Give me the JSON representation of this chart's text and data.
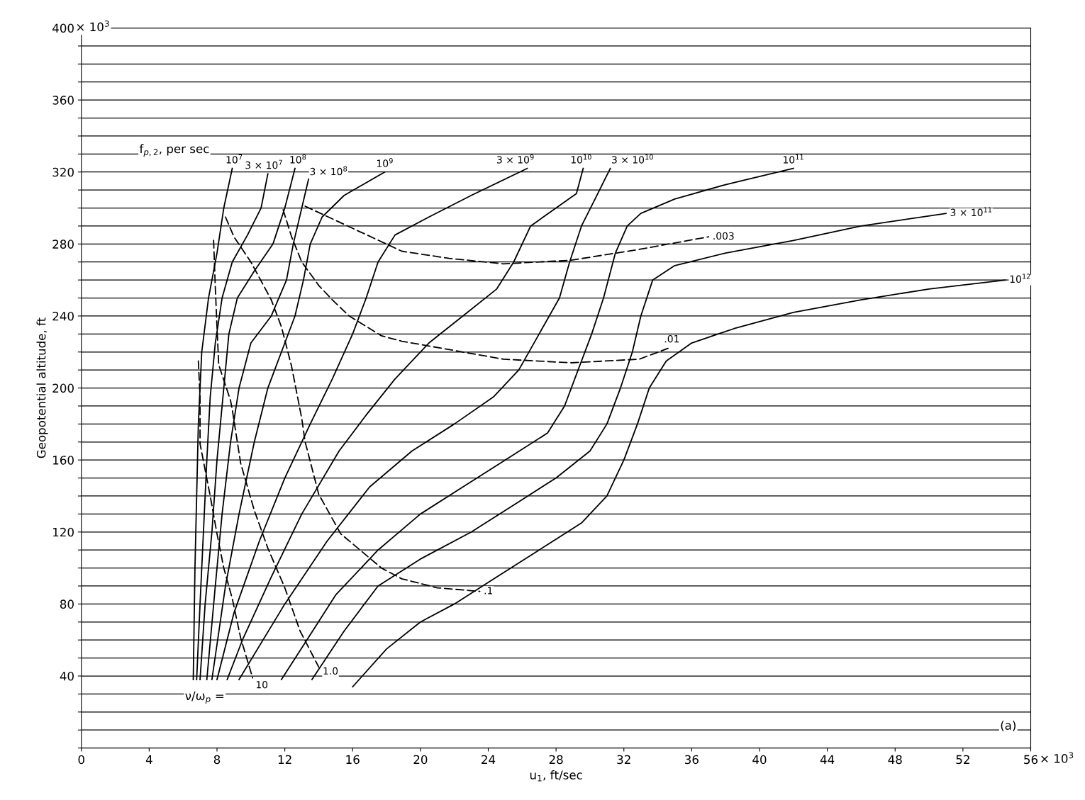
{
  "chart_data": {
    "type": "line",
    "xlabel": "u$_{1}$, ft/sec",
    "ylabel": "Geopotential altitude, ft",
    "xlim": [
      0,
      56
    ],
    "ylim": [
      0,
      400
    ],
    "xticks": [
      0,
      4,
      8,
      12,
      16,
      20,
      24,
      28,
      32,
      36,
      40,
      44,
      48,
      52,
      56
    ],
    "yticks": [
      {
        "value": 0,
        "label": null
      },
      {
        "value": 10,
        "label": null
      },
      {
        "value": 20,
        "label": null
      },
      {
        "value": 30,
        "label": null
      },
      40,
      {
        "value": 50,
        "label": null
      },
      {
        "value": 60,
        "label": null
      },
      {
        "value": 70,
        "label": null
      },
      80,
      {
        "value": 90,
        "label": null
      },
      {
        "value": 100,
        "label": null
      },
      {
        "value": 110,
        "label": null
      },
      120,
      {
        "value": 130,
        "label": null
      },
      {
        "value": 140,
        "label": null
      },
      {
        "value": 150,
        "label": null
      },
      160,
      {
        "value": 170,
        "label": null
      },
      {
        "value": 180,
        "label": null
      },
      {
        "value": 190,
        "label": null
      },
      200,
      {
        "value": 210,
        "label": null
      },
      {
        "value": 220,
        "label": null
      },
      {
        "value": 230,
        "label": null
      },
      240,
      {
        "value": 250,
        "label": null
      },
      {
        "value": 260,
        "label": null
      },
      {
        "value": 270,
        "label": null
      },
      280,
      {
        "value": 290,
        "label": null
      },
      {
        "value": 300,
        "label": null
      },
      {
        "value": 310,
        "label": null
      },
      320,
      {
        "value": 330,
        "label": null
      },
      {
        "value": 340,
        "label": null
      },
      {
        "value": 350,
        "label": null
      },
      360,
      {
        "value": 370,
        "label": null
      },
      {
        "value": 380,
        "label": null
      },
      {
        "value": 390,
        "label": null
      },
      400
    ],
    "grid": "y",
    "marker": "none",
    "series": [
      {
        "name": "10$^{7}$",
        "color": "#000000",
        "line_style": "solid",
        "x": [
          6.6,
          6.7,
          6.8,
          6.9,
          7.1,
          7.5,
          8.0,
          8.4,
          8.9
        ],
        "values": [
          38,
          100,
          140,
          180,
          220,
          250,
          275,
          300,
          322
        ]
      },
      {
        "name": "3 × 10$^{7}$",
        "color": "#000000",
        "line_style": "solid",
        "x": [
          6.8,
          7.0,
          7.2,
          7.4,
          7.6,
          7.9,
          8.3,
          8.9,
          9.8,
          10.6,
          11.0
        ],
        "values": [
          38,
          80,
          120,
          160,
          195,
          225,
          250,
          270,
          285,
          300,
          319
        ]
      },
      {
        "name": "10$^{8}$",
        "color": "#000000",
        "line_style": "solid",
        "x": [
          7.0,
          7.3,
          7.7,
          8.0,
          8.4,
          8.7,
          9.2,
          10.2,
          11.3,
          12.0,
          12.6
        ],
        "values": [
          38,
          80,
          120,
          160,
          200,
          230,
          250,
          265,
          280,
          300,
          322
        ]
      },
      {
        "name": "3 × 10$^{8}$",
        "color": "#000000",
        "line_style": "solid",
        "x": [
          7.4,
          7.9,
          8.3,
          8.8,
          9.3,
          10.0,
          11.2,
          12.1,
          12.5,
          13.0,
          13.4
        ],
        "values": [
          38,
          90,
          130,
          170,
          200,
          225,
          240,
          260,
          280,
          300,
          316
        ]
      },
      {
        "name": "10$^{9}$",
        "color": "#000000",
        "line_style": "solid",
        "x": [
          7.7,
          8.5,
          9.3,
          10.2,
          11.0,
          11.8,
          12.6,
          13.1,
          13.5,
          14.2,
          15.5,
          17.9
        ],
        "values": [
          38,
          90,
          130,
          170,
          200,
          220,
          240,
          260,
          280,
          295,
          307,
          320
        ]
      },
      {
        "name": "3 × 10$^{9}$",
        "color": "#000000",
        "line_style": "solid",
        "x": [
          8.0,
          9.0,
          10.5,
          12.0,
          13.5,
          14.8,
          16.0,
          16.8,
          17.5,
          18.5,
          20.5,
          23.0,
          26.3
        ],
        "values": [
          38,
          75,
          115,
          150,
          180,
          205,
          230,
          250,
          270,
          285,
          295,
          307,
          322
        ]
      },
      {
        "name": "10$^{10}$",
        "color": "#000000",
        "line_style": "solid",
        "x": [
          8.6,
          9.5,
          11.2,
          13.0,
          15.2,
          16.8,
          18.5,
          20.5,
          22.5,
          24.5,
          25.5,
          26.5,
          28.0,
          29.2,
          29.6
        ],
        "values": [
          38,
          60,
          95,
          130,
          165,
          185,
          205,
          225,
          240,
          255,
          270,
          290,
          300,
          308,
          322
        ]
      },
      {
        "name": "3 × 10$^{10}$",
        "color": "#000000",
        "line_style": "solid",
        "x": [
          9.3,
          12.0,
          14.5,
          17.0,
          19.5,
          22.0,
          24.3,
          25.8,
          27.0,
          28.2,
          28.8,
          29.5,
          30.3,
          31.2
        ],
        "values": [
          38,
          80,
          115,
          145,
          165,
          180,
          195,
          210,
          230,
          250,
          270,
          290,
          305,
          322
        ]
      },
      {
        "name": "10$^{11}$",
        "color": "#000000",
        "line_style": "solid",
        "x": [
          11.8,
          13.3,
          15,
          17.5,
          20,
          22.5,
          25,
          27.5,
          28.5,
          29.3,
          30.1,
          30.8,
          31.5,
          32.2,
          33,
          35,
          38,
          42
        ],
        "values": [
          38,
          60,
          85,
          110,
          130,
          145,
          160,
          175,
          190,
          210,
          230,
          250,
          275,
          290,
          297,
          305,
          313,
          322
        ]
      },
      {
        "name": "3 × 10$^{11}$",
        "color": "#000000",
        "line_style": "solid",
        "x": [
          13.6,
          15.5,
          17.5,
          20,
          23,
          25.5,
          28,
          30,
          31,
          31.8,
          32.5,
          33,
          33.7,
          35,
          38,
          42,
          46,
          51
        ],
        "values": [
          38,
          65,
          90,
          105,
          120,
          135,
          150,
          165,
          180,
          200,
          220,
          240,
          260,
          268,
          275,
          282,
          290,
          297
        ]
      },
      {
        "name": "10$^{12}$",
        "color": "#000000",
        "line_style": "solid",
        "x": [
          16,
          18,
          20,
          22,
          24.5,
          27,
          29.5,
          31,
          32,
          32.8,
          33.5,
          34.5,
          36,
          38.5,
          42,
          46,
          50,
          54.5
        ],
        "values": [
          34,
          55,
          70,
          80,
          95,
          110,
          125,
          140,
          160,
          180,
          200,
          215,
          225,
          233,
          242,
          249,
          255,
          260
        ]
      },
      {
        "name": "10",
        "color": "#000000",
        "line_style": "dashed",
        "x": [
          6.9,
          7.0,
          7.0,
          7.6,
          8.0,
          8.4,
          8.9,
          9.4,
          10.1
        ],
        "values": [
          215,
          195,
          169,
          140,
          119,
          100,
          83,
          61,
          39
        ]
      },
      {
        "name": "1.0",
        "color": "#000000",
        "line_style": "dashed",
        "x": [
          7.8,
          7.9,
          8.0,
          8.1,
          8.8,
          8.9,
          9.4,
          10.2,
          11.0,
          12.0,
          12.9,
          14.0
        ],
        "values": [
          282,
          256,
          234,
          213,
          193,
          188,
          158,
          132,
          111,
          89,
          65,
          45
        ]
      },
      {
        "name": ".1",
        "color": "#000000",
        "line_style": "dashed",
        "x": [
          8.5,
          9.0,
          10.0,
          11.2,
          11.8,
          12.4,
          13.0,
          13.2,
          14.0,
          15.3,
          17.7,
          18.9,
          21.0,
          23.5
        ],
        "values": [
          295,
          284,
          270,
          249,
          234,
          212,
          183,
          170,
          141,
          119,
          100,
          94,
          89,
          87
        ]
      },
      {
        "name": ".01",
        "color": "#000000",
        "line_style": "dashed",
        "x": [
          11.9,
          12.4,
          13.0,
          14.0,
          14.8,
          15.8,
          17.7,
          18.9,
          24.9,
          28.9,
          32.9,
          34.6
        ],
        "values": [
          299,
          284,
          270,
          257,
          249,
          240,
          229,
          226,
          216,
          214,
          216,
          222
        ]
      },
      {
        "name": ".003",
        "color": "#000000",
        "line_style": "dashed",
        "x": [
          13.2,
          18.9,
          21.7,
          24.9,
          28.9,
          32.9,
          37.0
        ],
        "values": [
          301,
          276,
          272,
          269,
          271,
          277,
          284
        ]
      }
    ],
    "annotations": [
      "f$_{p,2}$, per sec",
      "ν/ω$_{p}$ =",
      "(a)",
      "× 10$^{3}$",
      "× 10$^{3}$"
    ]
  }
}
